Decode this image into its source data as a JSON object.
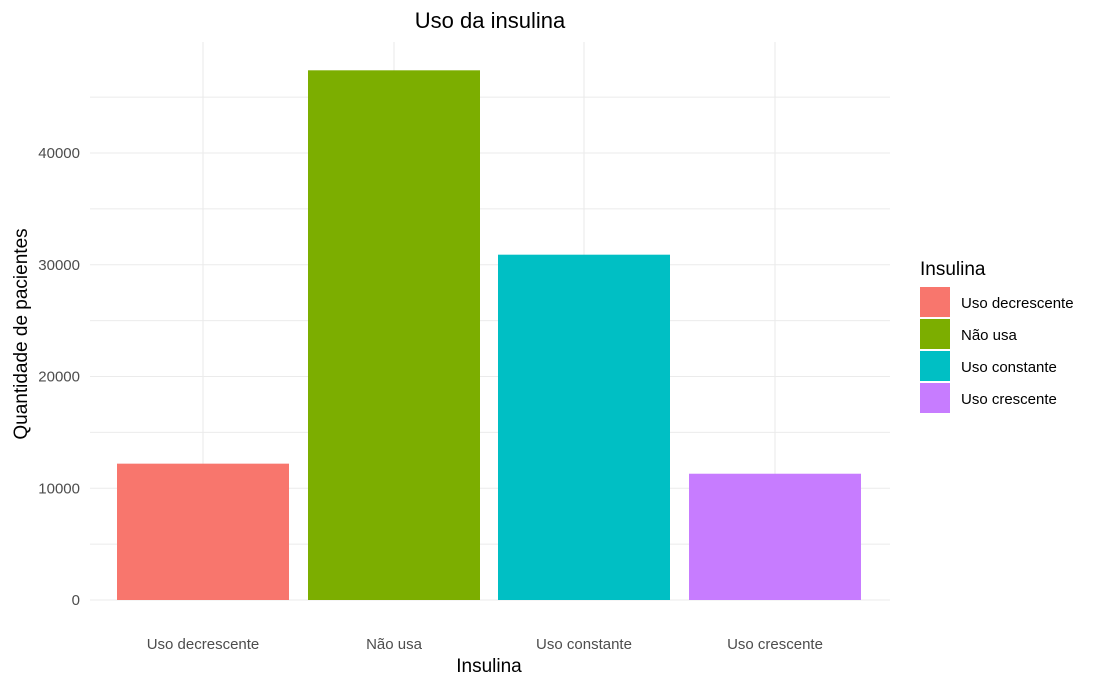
{
  "chart_data": {
    "type": "bar",
    "title": "Uso da insulina",
    "xlabel": "Insulina",
    "ylabel": "Quantidade de pacientes",
    "categories": [
      "Uso decrescente",
      "Não usa",
      "Uso constante",
      "Uso crescente"
    ],
    "values": [
      12200,
      47400,
      30900,
      11300
    ],
    "colors": [
      "#F8766D",
      "#7CAE00",
      "#00BFC4",
      "#C77CFF"
    ],
    "ylim": [
      0,
      47400
    ],
    "yticks": [
      0,
      10000,
      20000,
      30000,
      40000
    ],
    "ytick_labels": [
      "0",
      "10000",
      "20000",
      "30000",
      "40000"
    ],
    "grid": true,
    "legend": {
      "title": "Insulina",
      "position": "right",
      "items": [
        "Uso decrescente",
        "Não usa",
        "Uso constante",
        "Uso crescente"
      ]
    }
  }
}
